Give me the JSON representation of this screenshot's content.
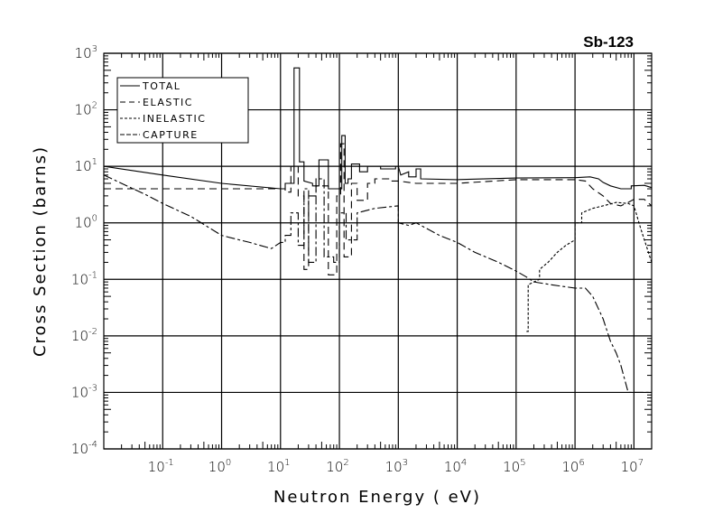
{
  "chart_data": {
    "type": "line",
    "title": "Sb-123",
    "xlabel": "Neutron Energy ( eV)",
    "ylabel": "Cross Section (barns)",
    "xscale": "log",
    "yscale": "log",
    "xlim": [
      0.01,
      20000000
    ],
    "ylim": [
      0.0001,
      1000
    ],
    "x_ticks": [
      {
        "base": "10",
        "exp": "-1",
        "value": 0.1
      },
      {
        "base": "10",
        "exp": "0",
        "value": 1
      },
      {
        "base": "10",
        "exp": "1",
        "value": 10
      },
      {
        "base": "10",
        "exp": "2",
        "value": 100
      },
      {
        "base": "10",
        "exp": "3",
        "value": 1000
      },
      {
        "base": "10",
        "exp": "4",
        "value": 10000
      },
      {
        "base": "10",
        "exp": "5",
        "value": 100000
      },
      {
        "base": "10",
        "exp": "6",
        "value": 1000000
      },
      {
        "base": "10",
        "exp": "7",
        "value": 10000000
      }
    ],
    "y_ticks": [
      {
        "base": "10",
        "exp": "3",
        "value": 1000
      },
      {
        "base": "10",
        "exp": "2",
        "value": 100
      },
      {
        "base": "10",
        "exp": "1",
        "value": 10
      },
      {
        "base": "10",
        "exp": "0",
        "value": 1
      },
      {
        "base": "10",
        "exp": "-1",
        "value": 0.1
      },
      {
        "base": "10",
        "exp": "-2",
        "value": 0.01
      },
      {
        "base": "10",
        "exp": "-3",
        "value": 0.001
      },
      {
        "base": "10",
        "exp": "-4",
        "value": 0.0001
      }
    ],
    "grid": true,
    "legend_position": "top-left",
    "series": [
      {
        "name": "TOTAL",
        "dash": "",
        "points": [
          [
            0.01,
            10
          ],
          [
            0.1,
            7
          ],
          [
            1,
            5
          ],
          [
            10,
            4
          ],
          [
            12,
            4
          ],
          [
            12,
            5
          ],
          [
            17,
            5
          ],
          [
            17,
            550
          ],
          [
            21,
            550
          ],
          [
            21,
            12
          ],
          [
            25,
            12
          ],
          [
            25,
            5.5
          ],
          [
            35,
            5
          ],
          [
            35,
            4.5
          ],
          [
            45,
            4.5
          ],
          [
            45,
            13
          ],
          [
            65,
            13
          ],
          [
            65,
            4
          ],
          [
            100,
            4
          ],
          [
            100,
            4
          ],
          [
            110,
            4
          ],
          [
            110,
            35
          ],
          [
            125,
            35
          ],
          [
            125,
            5
          ],
          [
            140,
            5
          ],
          [
            140,
            6
          ],
          [
            160,
            6
          ],
          [
            160,
            11
          ],
          [
            220,
            11
          ],
          [
            220,
            8
          ],
          [
            300,
            8
          ],
          [
            300,
            10
          ],
          [
            500,
            10
          ],
          [
            500,
            9
          ],
          [
            900,
            9
          ],
          [
            900,
            10
          ],
          [
            1000,
            10
          ],
          [
            1100,
            7
          ],
          [
            1500,
            8
          ],
          [
            1500,
            6.5
          ],
          [
            2000,
            6.5
          ],
          [
            2000,
            9
          ],
          [
            2400,
            9
          ],
          [
            2400,
            6
          ],
          [
            10000,
            5.8
          ],
          [
            100000,
            6.2
          ],
          [
            1000000,
            6.3
          ],
          [
            1800000,
            6.5
          ],
          [
            2500000,
            6
          ],
          [
            3000000,
            5.2
          ],
          [
            4000000,
            4.5
          ],
          [
            6000000,
            4
          ],
          [
            9000000,
            4
          ],
          [
            9000000,
            4.5
          ],
          [
            15000000,
            4.6
          ],
          [
            20000000,
            4.2
          ]
        ]
      },
      {
        "name": "ELASTIC",
        "dash": "8,5",
        "points": [
          [
            0.01,
            4
          ],
          [
            1,
            4
          ],
          [
            10,
            4
          ],
          [
            12,
            4
          ],
          [
            12,
            3.5
          ],
          [
            15,
            3.5
          ],
          [
            15,
            10
          ],
          [
            20,
            10
          ],
          [
            20,
            3
          ],
          [
            25,
            3
          ],
          [
            25,
            0.15
          ],
          [
            30,
            0.15
          ],
          [
            30,
            3
          ],
          [
            40,
            3
          ],
          [
            40,
            4.5
          ],
          [
            65,
            4.5
          ],
          [
            65,
            0.12
          ],
          [
            90,
            0.12
          ],
          [
            90,
            3
          ],
          [
            105,
            3
          ],
          [
            105,
            25
          ],
          [
            120,
            25
          ],
          [
            120,
            0.25
          ],
          [
            160,
            0.25
          ],
          [
            160,
            5
          ],
          [
            200,
            5
          ],
          [
            200,
            2.5
          ],
          [
            300,
            2.5
          ],
          [
            300,
            5
          ],
          [
            400,
            5
          ],
          [
            400,
            6
          ],
          [
            700,
            6
          ],
          [
            700,
            5.5
          ],
          [
            1000,
            5.5
          ],
          [
            2000,
            5
          ],
          [
            10000,
            5
          ],
          [
            100000,
            5.8
          ],
          [
            1000000,
            5.8
          ],
          [
            1500000,
            5.5
          ],
          [
            2000000,
            4
          ],
          [
            3000000,
            3
          ],
          [
            4000000,
            2.2
          ],
          [
            6000000,
            2
          ],
          [
            8000000,
            2.3
          ],
          [
            10000000,
            2.6
          ],
          [
            15000000,
            2.6
          ],
          [
            20000000,
            2
          ]
        ]
      },
      {
        "name": "INELASTIC",
        "dash": "3,2",
        "points": [
          [
            150000,
            0.012
          ],
          [
            160000,
            0.012
          ],
          [
            160000,
            0.08
          ],
          [
            200000,
            0.09
          ],
          [
            250000,
            0.1
          ],
          [
            250000,
            0.15
          ],
          [
            350000,
            0.2
          ],
          [
            500000,
            0.3
          ],
          [
            700000,
            0.4
          ],
          [
            1000000,
            0.5
          ],
          [
            1000000,
            1
          ],
          [
            1300000,
            1
          ],
          [
            1300000,
            1.5
          ],
          [
            2000000,
            1.8
          ],
          [
            3000000,
            2
          ],
          [
            5000000,
            2.3
          ],
          [
            8000000,
            2.2
          ],
          [
            10000000,
            2
          ],
          [
            13000000,
            0.8
          ],
          [
            20000000,
            0.2
          ]
        ]
      },
      {
        "name": "CAPTURE",
        "dash": "10,3,3,3",
        "points": [
          [
            0.01,
            7
          ],
          [
            0.05,
            3.2
          ],
          [
            0.1,
            2.2
          ],
          [
            0.3,
            1.3
          ],
          [
            1,
            0.6
          ],
          [
            2,
            0.5
          ],
          [
            3,
            0.45
          ],
          [
            7,
            0.35
          ],
          [
            10,
            0.45
          ],
          [
            12,
            0.45
          ],
          [
            12,
            0.6
          ],
          [
            15,
            0.6
          ],
          [
            15,
            1.5
          ],
          [
            20,
            1.5
          ],
          [
            20,
            0.4
          ],
          [
            25,
            0.4
          ],
          [
            25,
            4
          ],
          [
            30,
            4
          ],
          [
            30,
            0.2
          ],
          [
            40,
            0.2
          ],
          [
            40,
            6
          ],
          [
            55,
            6
          ],
          [
            55,
            0.25
          ],
          [
            80,
            0.25
          ],
          [
            80,
            0.2
          ],
          [
            100,
            0.2
          ],
          [
            100,
            1.5
          ],
          [
            130,
            1.5
          ],
          [
            130,
            0.5
          ],
          [
            200,
            0.5
          ],
          [
            200,
            1.5
          ],
          [
            400,
            1.8
          ],
          [
            1000,
            2
          ],
          [
            1000,
            1
          ],
          [
            1500,
            0.9
          ],
          [
            2000,
            1
          ],
          [
            3000,
            0.8
          ],
          [
            5000,
            0.6
          ],
          [
            10000,
            0.45
          ],
          [
            20000,
            0.3
          ],
          [
            50000,
            0.2
          ],
          [
            100000,
            0.14
          ],
          [
            150000,
            0.11
          ],
          [
            200000,
            0.09
          ],
          [
            400000,
            0.08
          ],
          [
            1000000,
            0.07
          ],
          [
            1500000,
            0.07
          ],
          [
            2000000,
            0.05
          ],
          [
            3000000,
            0.02
          ],
          [
            4000000,
            0.008
          ],
          [
            5000000,
            0.005
          ],
          [
            6000000,
            0.003
          ],
          [
            8000000,
            0.001
          ],
          [
            20000000,
            0.001
          ]
        ]
      }
    ]
  }
}
